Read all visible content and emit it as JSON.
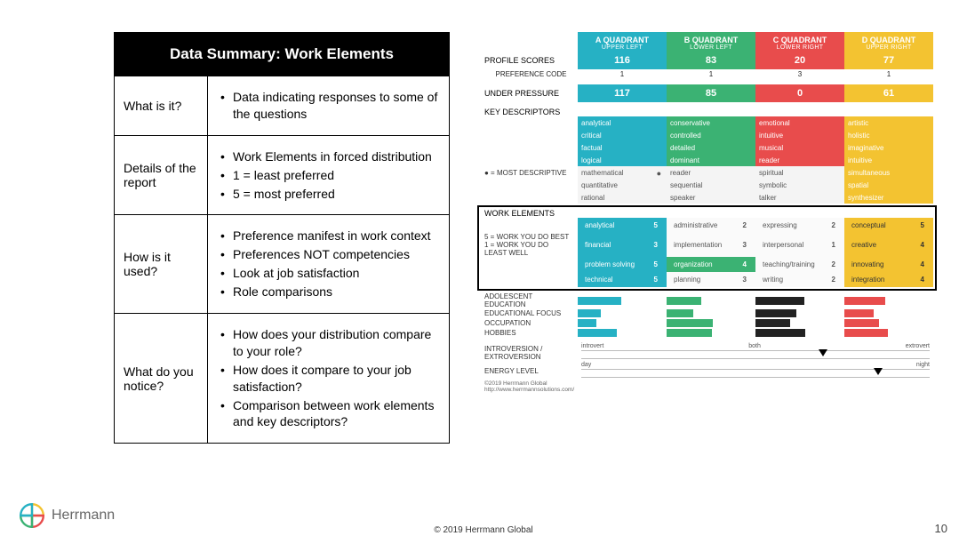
{
  "summary": {
    "title": "Data Summary: Work Elements",
    "rows": [
      {
        "label": "What is it?",
        "bullets": [
          "Data indicating responses to some of the questions"
        ]
      },
      {
        "label": "Details of the report",
        "bullets": [
          "Work Elements in forced distribution",
          "1 = least preferred",
          "5 = most preferred"
        ]
      },
      {
        "label": "How is it used?",
        "bullets": [
          "Preference manifest in work context",
          "Preferences NOT competencies",
          "Look at job satisfaction",
          "Role comparisons"
        ]
      },
      {
        "label": "What do you notice?",
        "bullets": [
          "How does your distribution compare to your role?",
          "How does it compare to your job satisfaction?",
          "Comparison between work elements and key descriptors?"
        ]
      }
    ]
  },
  "colors": {
    "A": "#26b1c4",
    "B": "#3bb273",
    "C": "#e84c4c",
    "D": "#f3c331"
  },
  "quadrants": [
    {
      "key": "A",
      "title": "A QUADRANT",
      "sub": "UPPER LEFT"
    },
    {
      "key": "B",
      "title": "B QUADRANT",
      "sub": "LOWER LEFT"
    },
    {
      "key": "C",
      "title": "C QUADRANT",
      "sub": "LOWER RIGHT"
    },
    {
      "key": "D",
      "title": "D QUADRANT",
      "sub": "UPPER RIGHT"
    }
  ],
  "sections": {
    "profile_scores": {
      "label": "PROFILE SCORES",
      "values": [
        "116",
        "83",
        "20",
        "77"
      ]
    },
    "preference_code": {
      "label": "PREFERENCE CODE",
      "values": [
        "1",
        "1",
        "3",
        "1"
      ]
    },
    "under_pressure": {
      "label": "UNDER PRESSURE",
      "values": [
        "117",
        "85",
        "0",
        "61"
      ]
    },
    "key_descriptors_label": "KEY DESCRIPTORS",
    "most_descriptive_note": "● = MOST DESCRIPTIVE",
    "descriptors": [
      [
        {
          "t": "analytical",
          "m": false
        },
        {
          "t": "conservative",
          "m": false
        },
        {
          "t": "emotional",
          "m": false
        },
        {
          "t": "artistic",
          "m": false
        }
      ],
      [
        {
          "t": "critical",
          "m": false
        },
        {
          "t": "controlled",
          "m": false
        },
        {
          "t": "intuitive",
          "m": false
        },
        {
          "t": "holistic",
          "m": false
        }
      ],
      [
        {
          "t": "factual",
          "m": false
        },
        {
          "t": "detailed",
          "m": false
        },
        {
          "t": "musical",
          "m": false
        },
        {
          "t": "imaginative",
          "m": false
        }
      ],
      [
        {
          "t": "logical",
          "m": false
        },
        {
          "t": "dominant",
          "m": false
        },
        {
          "t": "reader",
          "m": false
        },
        {
          "t": "intuitive",
          "m": false
        }
      ],
      [
        {
          "t": "mathematical",
          "m": true
        },
        {
          "t": "reader",
          "m": false
        },
        {
          "t": "spiritual",
          "m": false
        },
        {
          "t": "simultaneous",
          "m": false
        }
      ],
      [
        {
          "t": "quantitative",
          "m": false
        },
        {
          "t": "sequential",
          "m": false
        },
        {
          "t": "symbolic",
          "m": false
        },
        {
          "t": "spatial",
          "m": false
        }
      ],
      [
        {
          "t": "rational",
          "m": false
        },
        {
          "t": "speaker",
          "m": false
        },
        {
          "t": "talker",
          "m": false
        },
        {
          "t": "synthesizer",
          "m": false
        }
      ]
    ],
    "work_elements_label": "WORK ELEMENTS",
    "work_elements_note": "5 = WORK YOU DO BEST\n1 = WORK YOU DO LEAST WELL",
    "work_elements": [
      [
        {
          "t": "analytical",
          "n": "5"
        },
        {
          "t": "administrative",
          "n": "2"
        },
        {
          "t": "expressing",
          "n": "2"
        },
        {
          "t": "conceptual",
          "n": "5"
        }
      ],
      [
        {
          "t": "financial",
          "n": "3"
        },
        {
          "t": "implementation",
          "n": "3"
        },
        {
          "t": "interpersonal",
          "n": "1"
        },
        {
          "t": "creative",
          "n": "4"
        }
      ],
      [
        {
          "t": "problem solving",
          "n": "5"
        },
        {
          "t": "organization",
          "n": "4"
        },
        {
          "t": "teaching/training",
          "n": "2"
        },
        {
          "t": "innovating",
          "n": "4"
        }
      ],
      [
        {
          "t": "technical",
          "n": "5"
        },
        {
          "t": "planning",
          "n": "3"
        },
        {
          "t": "writing",
          "n": "2"
        },
        {
          "t": "integration",
          "n": "4"
        }
      ]
    ],
    "extra_labels": [
      "ADOLESCENT EDUCATION",
      "EDUCATIONAL FOCUS",
      "OCCUPATION",
      "HOBBIES"
    ],
    "introversion_label": "INTROVERSION /\nEXTROVERSION",
    "energy_label": "ENERGY LEVEL",
    "scale1_ends": [
      "introvert",
      "extrovert"
    ],
    "scale1_mid": "both",
    "scale2_ends": [
      "day",
      "night"
    ],
    "scale1_marker_pct": 68,
    "scale2_marker_pct": 84,
    "fineprint1": "©2019 Herrmann Global",
    "fineprint2": "http://www.herrmannsolutions.com/"
  },
  "footer": {
    "copyright": "© 2019 Herrmann Global",
    "page": "10",
    "logo_text": "Herrmann"
  }
}
